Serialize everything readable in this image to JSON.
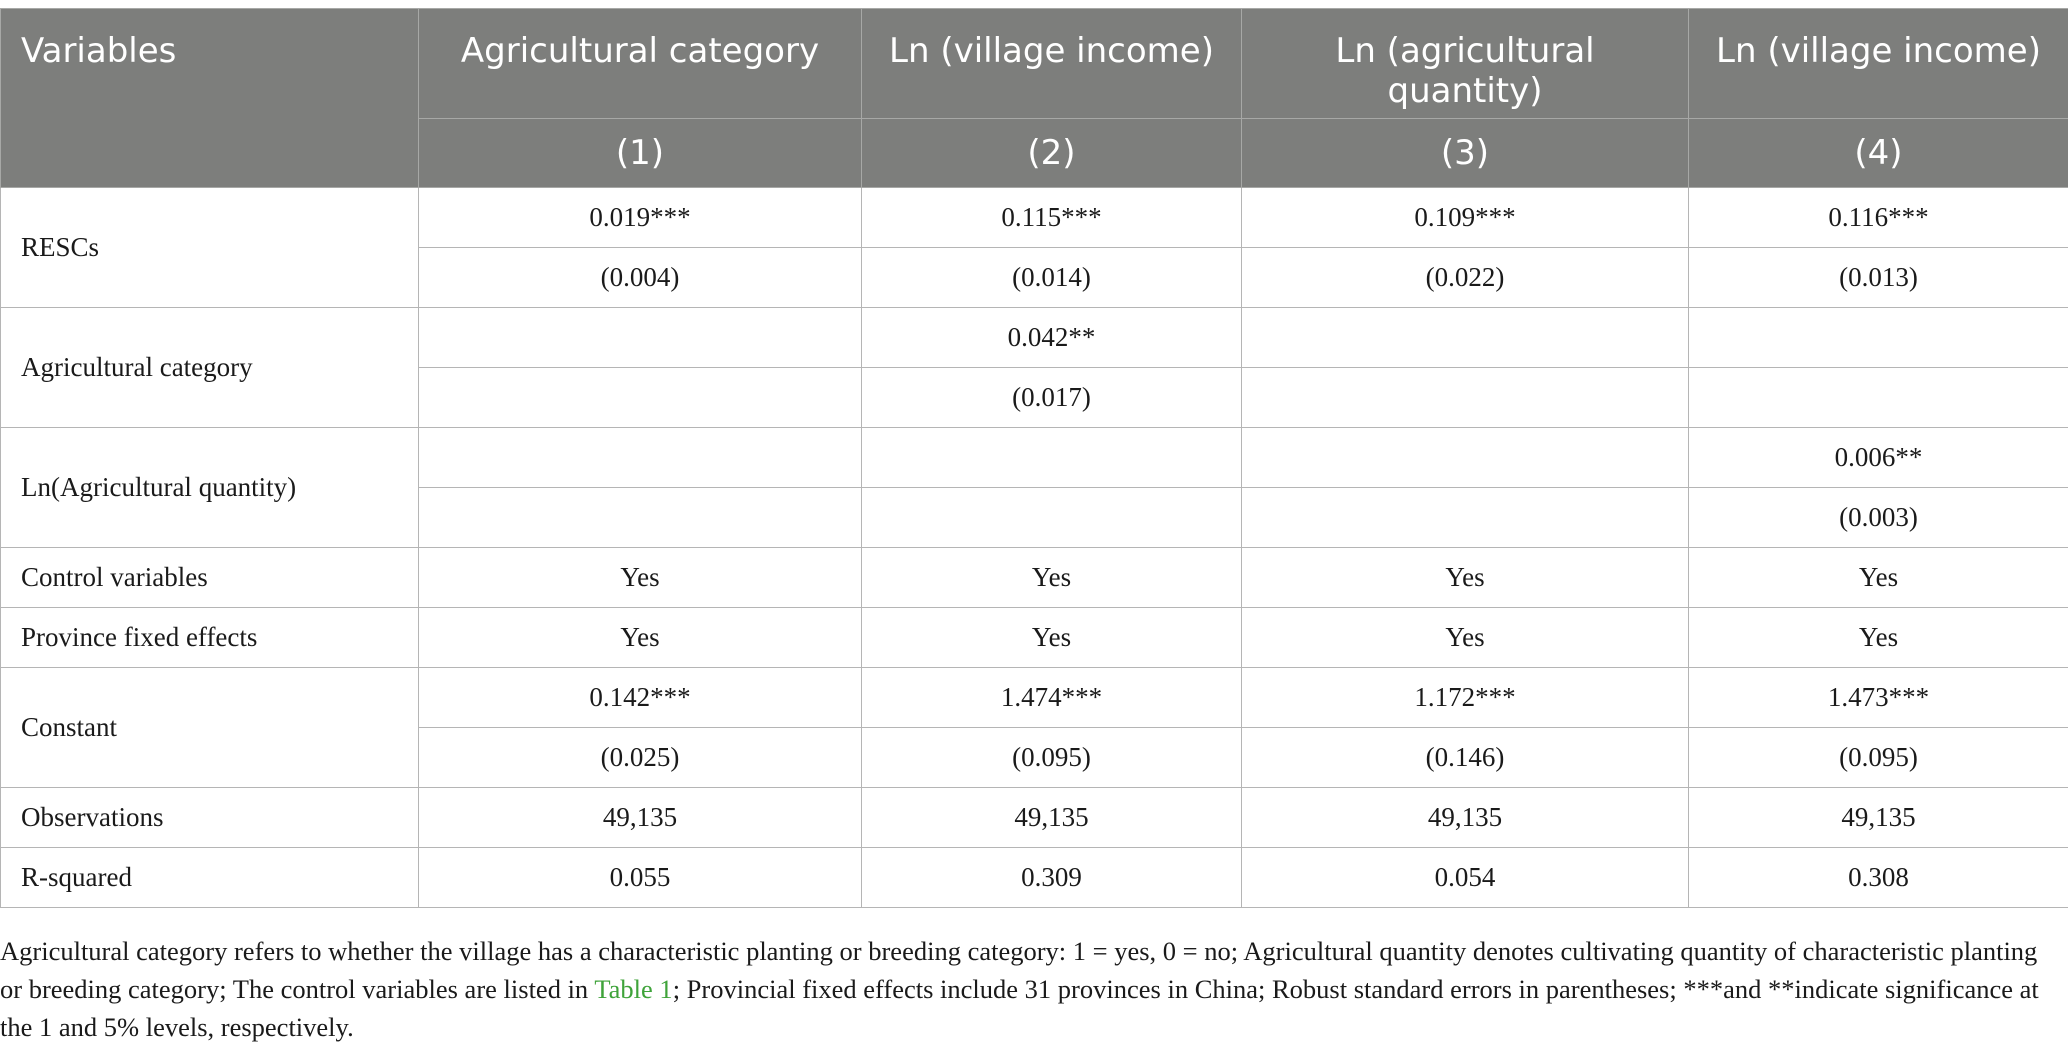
{
  "table": {
    "header": {
      "variables": "Variables",
      "columns": [
        "Agricultural category",
        "Ln (village income)",
        "Ln (agricultural quantity)",
        "Ln (village income)"
      ],
      "numbers": [
        "(1)",
        "(2)",
        "(3)",
        "(4)"
      ]
    },
    "rows": {
      "rescs": {
        "label": "RESCs",
        "coef": [
          "0.019***",
          "0.115***",
          "0.109***",
          "0.116***"
        ],
        "se": [
          "(0.004)",
          "(0.014)",
          "(0.022)",
          "(0.013)"
        ]
      },
      "agri_category": {
        "label": "Agricultural category",
        "coef": [
          "",
          "0.042**",
          "",
          ""
        ],
        "se": [
          "",
          "(0.017)",
          "",
          ""
        ]
      },
      "ln_agri_quantity": {
        "label": "Ln(Agricultural quantity)",
        "coef": [
          "",
          "",
          "",
          "0.006**"
        ],
        "se": [
          "",
          "",
          "",
          "(0.003)"
        ]
      },
      "controls": {
        "label": "Control variables",
        "values": [
          "Yes",
          "Yes",
          "Yes",
          "Yes"
        ]
      },
      "province_fe": {
        "label": "Province fixed effects",
        "values": [
          "Yes",
          "Yes",
          "Yes",
          "Yes"
        ]
      },
      "constant": {
        "label": "Constant",
        "coef": [
          "0.142***",
          "1.474***",
          "1.172***",
          "1.473***"
        ],
        "se": [
          "(0.025)",
          "(0.095)",
          "(0.146)",
          "(0.095)"
        ]
      },
      "observations": {
        "label": "Observations",
        "values": [
          "49,135",
          "49,135",
          "49,135",
          "49,135"
        ]
      },
      "r_squared": {
        "label": "R-squared",
        "values": [
          "0.055",
          "0.309",
          "0.054",
          "0.308"
        ]
      }
    }
  },
  "notes": {
    "before_link": "Agricultural category refers to whether the village has a characteristic planting or breeding category: 1 = yes, 0 = no; Agricultural quantity denotes cultivating quantity of characteristic planting or breeding category; The control variables are listed in ",
    "link_text": "Table 1",
    "after_link": "; Provincial fixed effects include 31 provinces in China; Robust standard errors in parentheses; ***and **indicate significance at the 1 and 5% levels, respectively.",
    "link_color": "#3fa33a"
  },
  "colors": {
    "header_background": "#7d7e7c",
    "header_text": "#ffffff",
    "grid_lines": "#b5b5b5"
  }
}
